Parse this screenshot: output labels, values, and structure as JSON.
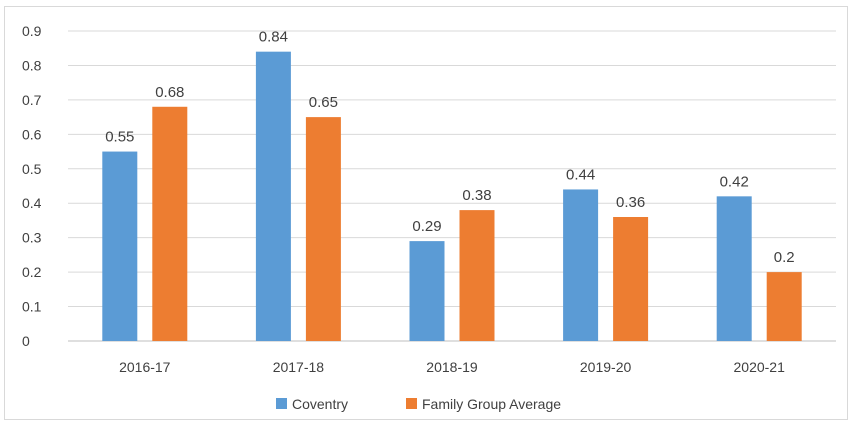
{
  "header": {
    "title_fragment": ""
  },
  "chart_data": {
    "type": "bar",
    "title": "",
    "xlabel": "",
    "ylabel": "",
    "categories": [
      "2016-17",
      "2017-18",
      "2018-19",
      "2019-20",
      "2020-21"
    ],
    "series": [
      {
        "name": "Coventry",
        "values": [
          0.55,
          0.84,
          0.29,
          0.44,
          0.42
        ],
        "color": "#5b9bd5"
      },
      {
        "name": "Family Group Average",
        "values": [
          0.68,
          0.65,
          0.38,
          0.36,
          0.2
        ],
        "color": "#ed7d31"
      }
    ],
    "ylim": [
      0,
      0.9
    ],
    "yticks": [
      "0",
      "0.1",
      "0.2",
      "0.3",
      "0.4",
      "0.5",
      "0.6",
      "0.7",
      "0.8",
      "0.9"
    ],
    "grid": true,
    "legend_position": "bottom",
    "data_labels": true
  }
}
